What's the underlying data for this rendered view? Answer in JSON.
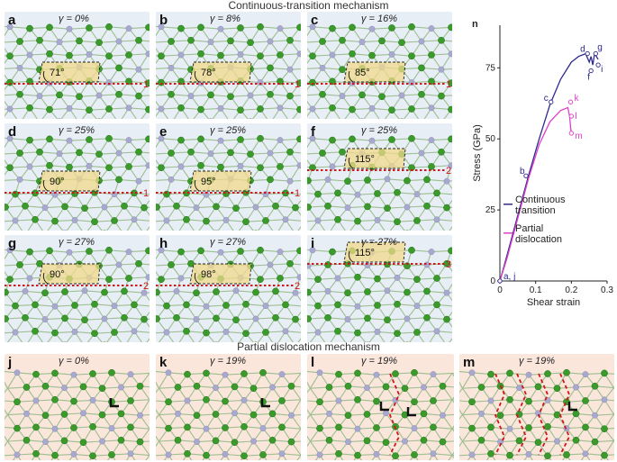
{
  "section_titles": {
    "top": "Continuous-transition mechanism",
    "bottom": "Partial dislocation mechanism"
  },
  "colors": {
    "panel_blue": "#e8eef6",
    "panel_pink": "#fbe6dc",
    "atom_green": "#3a9a2a",
    "atom_lavender": "#a9a8cf",
    "bond": "#9bbf8e",
    "slip_red": "#d0161b",
    "highlight": "#f1d98b",
    "continuous_line": "#2e2a8e",
    "partial_line": "#e040c8"
  },
  "panels_top": [
    {
      "id": "a",
      "label": "a",
      "gamma": "γ = 0%",
      "angle": "71°",
      "plane": "1"
    },
    {
      "id": "b",
      "label": "b",
      "gamma": "γ = 8%",
      "angle": "78°",
      "plane": "1"
    },
    {
      "id": "c",
      "label": "c",
      "gamma": "γ = 16%",
      "angle": "85°",
      "plane": "1"
    },
    {
      "id": "d",
      "label": "d",
      "gamma": "γ = 25%",
      "angle": "90°",
      "plane": "1"
    },
    {
      "id": "e",
      "label": "e",
      "gamma": "γ = 25%",
      "angle": "95°",
      "plane": "1"
    },
    {
      "id": "f",
      "label": "f",
      "gamma": "γ = 25%",
      "angle": "115°",
      "plane": "2"
    },
    {
      "id": "g",
      "label": "g",
      "gamma": "γ = 27%",
      "angle": "90°",
      "plane": "2"
    },
    {
      "id": "h",
      "label": "h",
      "gamma": "γ = 27%",
      "angle": "98°",
      "plane": "2"
    },
    {
      "id": "i",
      "label": "i",
      "gamma": "γ = 27%",
      "angle": "115°",
      "plane": "3"
    }
  ],
  "panels_bottom": [
    {
      "id": "j",
      "label": "j",
      "gamma": "γ = 0%",
      "dislocations": 1,
      "slip_lines": 0
    },
    {
      "id": "k",
      "label": "k",
      "gamma": "γ = 19%",
      "dislocations": 1,
      "slip_lines": 0
    },
    {
      "id": "l",
      "label": "l",
      "gamma": "γ = 19%",
      "dislocations": 2,
      "slip_lines": 1
    },
    {
      "id": "m",
      "label": "m",
      "gamma": "γ = 19%",
      "dislocations": 1,
      "slip_lines": 4
    }
  ],
  "chart_data": {
    "type": "line",
    "panel_label": "n",
    "xlabel": "Shear strain",
    "ylabel": "Stress (GPa)",
    "xlim": [
      0,
      0.3
    ],
    "ylim": [
      0,
      90
    ],
    "xticks": [
      "0",
      "0.1",
      "0.2",
      "0.3"
    ],
    "yticks": [
      "0",
      "25",
      "50",
      "75"
    ],
    "legend": {
      "placement": "bottom-right",
      "entries": [
        "Continuous transition",
        "Partial dislocation"
      ]
    },
    "series": [
      {
        "name": "Continuous transition",
        "x": [
          0,
          0.02,
          0.05,
          0.08,
          0.11,
          0.14,
          0.17,
          0.2,
          0.22,
          0.24,
          0.25,
          0.255,
          0.26,
          0.265,
          0.27,
          0.275
        ],
        "y": [
          0,
          9,
          23,
          37,
          50,
          62,
          71,
          77,
          79,
          80,
          77,
          79,
          76,
          80,
          79,
          78
        ]
      },
      {
        "name": "Partial dislocation",
        "x": [
          0,
          0.02,
          0.05,
          0.08,
          0.11,
          0.14,
          0.17,
          0.19,
          0.195,
          0.198,
          0.2
        ],
        "y": [
          0,
          8,
          22,
          36,
          48,
          56,
          60,
          61,
          58,
          54,
          52
        ]
      }
    ],
    "points": [
      {
        "label": "a, j",
        "x": 0,
        "y": 0,
        "series": 0
      },
      {
        "label": "b",
        "x": 0.073,
        "y": 37,
        "series": 0
      },
      {
        "label": "c",
        "x": 0.143,
        "y": 63,
        "series": 0
      },
      {
        "label": "d",
        "x": 0.245,
        "y": 80,
        "series": 0
      },
      {
        "label": "f",
        "x": 0.255,
        "y": 74,
        "series": 0
      },
      {
        "label": "g",
        "x": 0.268,
        "y": 80,
        "series": 0
      },
      {
        "label": "i",
        "x": 0.275,
        "y": 76,
        "series": 0
      },
      {
        "label": "k",
        "x": 0.198,
        "y": 63,
        "series": 1
      },
      {
        "label": "l",
        "x": 0.2,
        "y": 58,
        "series": 1
      },
      {
        "label": "m",
        "x": 0.2,
        "y": 52,
        "series": 1
      }
    ]
  }
}
